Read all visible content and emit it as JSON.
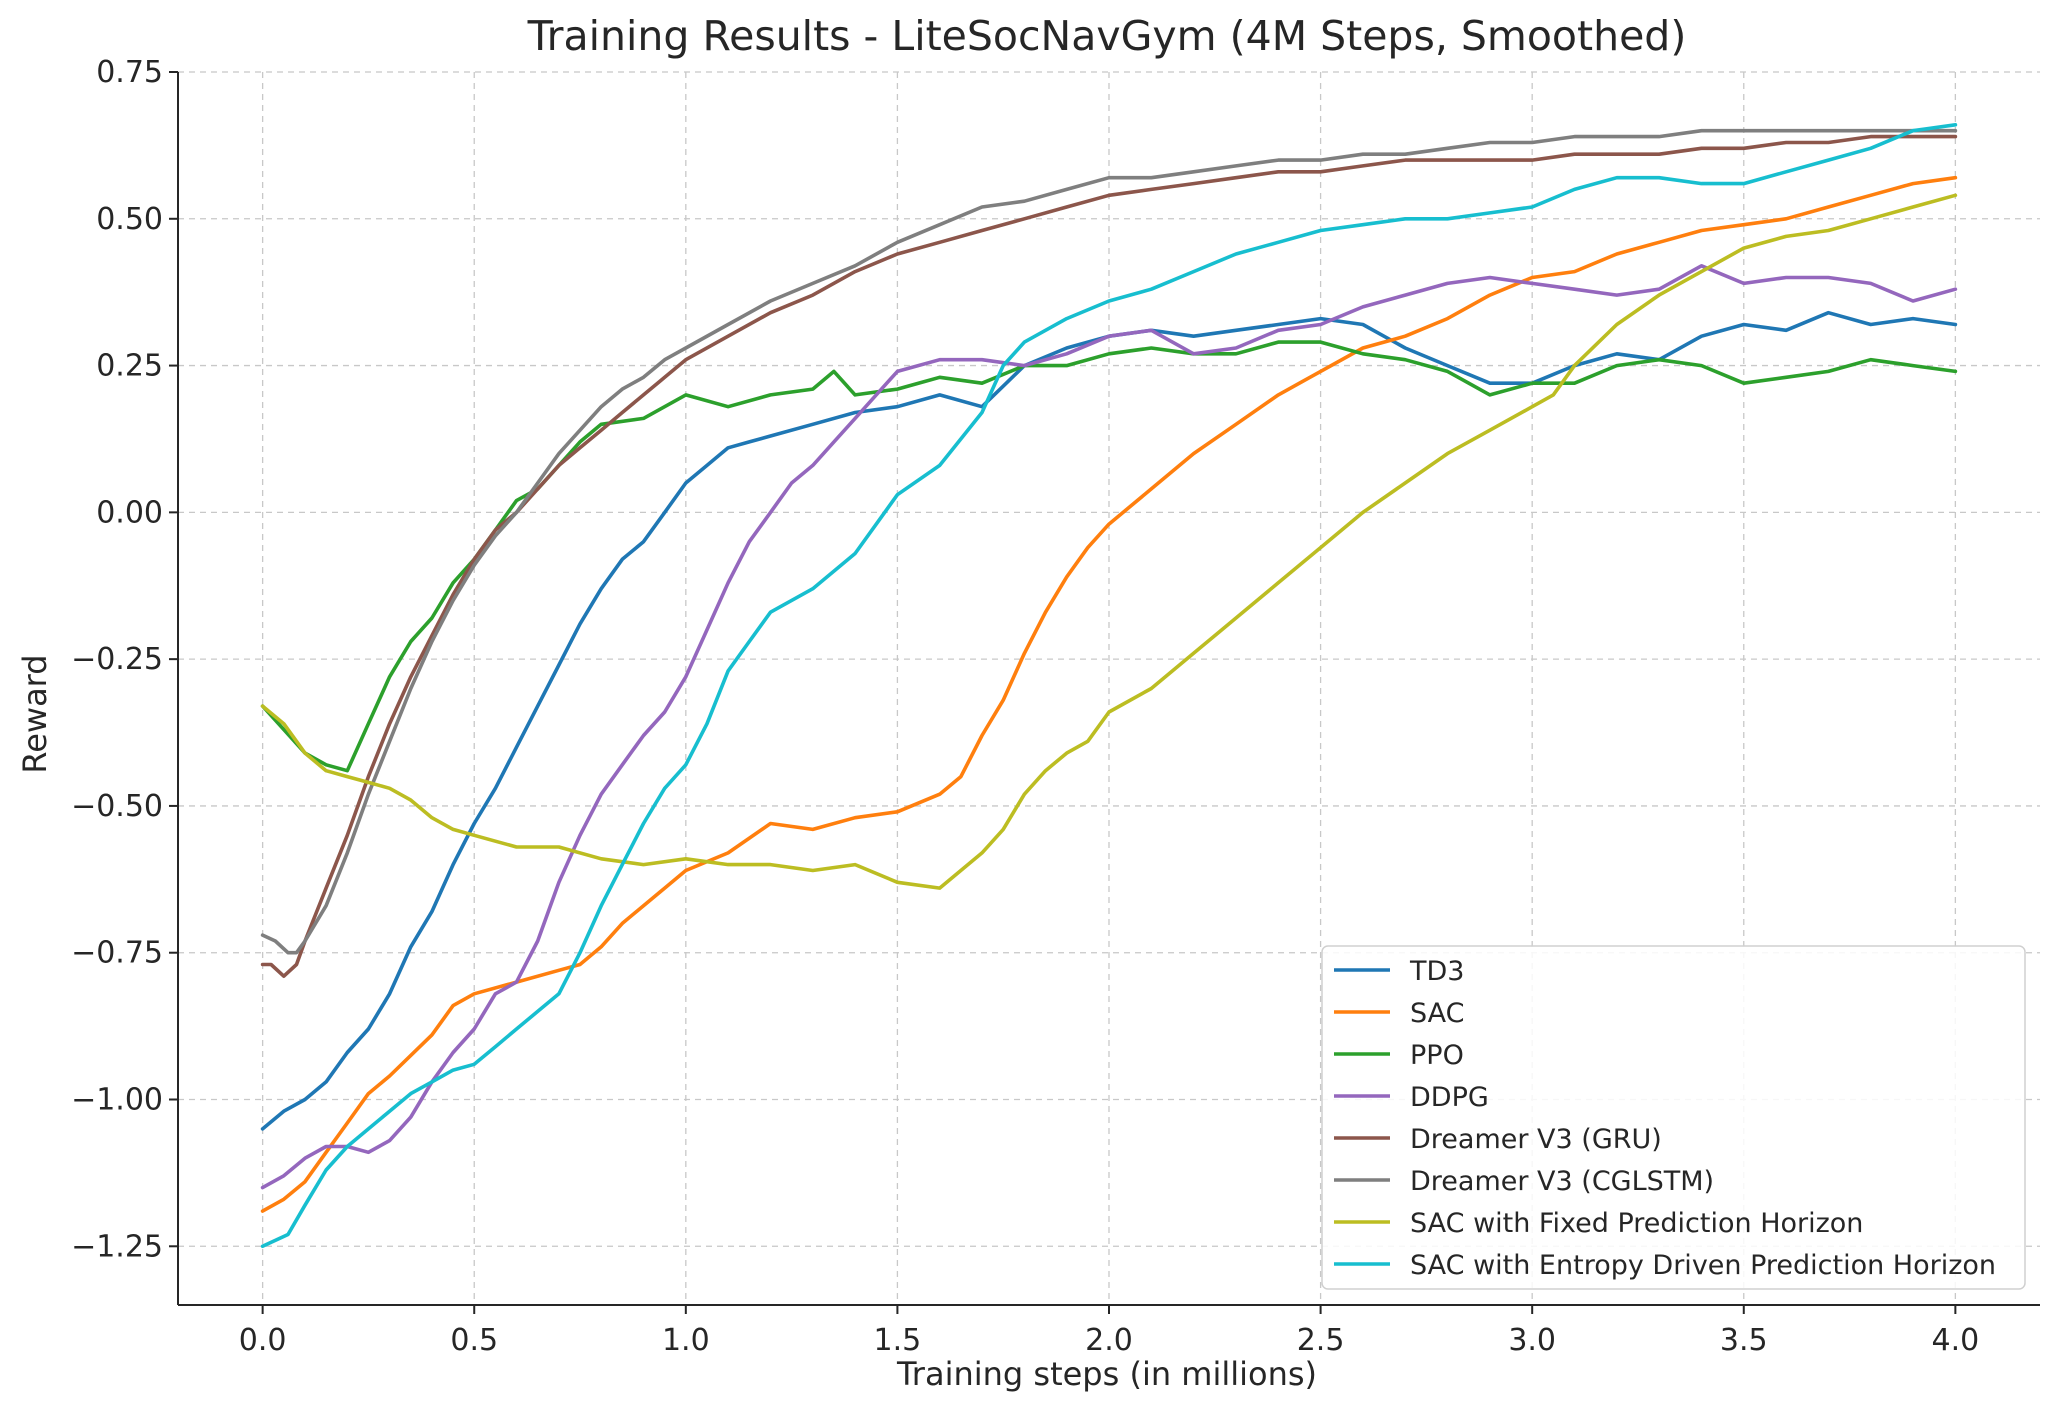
{
  "chart_data": {
    "type": "line",
    "title": "Training Results - LiteSocNavGym (4M Steps, Smoothed)",
    "xlabel": "Training steps (in millions)",
    "ylabel": "Reward",
    "xlim": [
      -0.2,
      4.2
    ],
    "ylim": [
      -1.35,
      0.75
    ],
    "xticks": [
      0.0,
      0.5,
      1.0,
      1.5,
      2.0,
      2.5,
      3.0,
      3.5,
      4.0
    ],
    "xtick_labels": [
      "0.0",
      "0.5",
      "1.0",
      "1.5",
      "2.0",
      "2.5",
      "3.0",
      "3.5",
      "4.0"
    ],
    "yticks": [
      0.75,
      0.5,
      0.25,
      0.0,
      -0.25,
      -0.5,
      -0.75,
      -1.0,
      -1.25
    ],
    "ytick_labels": [
      "0.75",
      "0.50",
      "0.25",
      "0.00",
      "−0.25",
      "−0.50",
      "−0.75",
      "−1.00",
      "−1.25"
    ],
    "grid": true,
    "legend_position": "lower-right",
    "series": [
      {
        "name": "TD3",
        "color": "#1f77b4",
        "x": [
          0,
          0.05,
          0.1,
          0.15,
          0.2,
          0.25,
          0.3,
          0.35,
          0.4,
          0.45,
          0.5,
          0.55,
          0.6,
          0.65,
          0.7,
          0.75,
          0.8,
          0.85,
          0.9,
          0.95,
          1.0,
          1.05,
          1.1,
          1.15,
          1.2,
          1.3,
          1.4,
          1.5,
          1.6,
          1.7,
          1.8,
          1.9,
          2.0,
          2.1,
          2.2,
          2.3,
          2.4,
          2.5,
          2.6,
          2.7,
          2.8,
          2.9,
          3.0,
          3.1,
          3.2,
          3.3,
          3.4,
          3.5,
          3.6,
          3.7,
          3.8,
          3.9,
          4.0
        ],
        "y": [
          -1.05,
          -1.02,
          -1.0,
          -0.97,
          -0.92,
          -0.88,
          -0.82,
          -0.74,
          -0.68,
          -0.6,
          -0.53,
          -0.47,
          -0.4,
          -0.33,
          -0.26,
          -0.19,
          -0.13,
          -0.08,
          -0.05,
          0.0,
          0.05,
          0.08,
          0.11,
          0.12,
          0.13,
          0.15,
          0.17,
          0.18,
          0.2,
          0.18,
          0.25,
          0.28,
          0.3,
          0.31,
          0.3,
          0.31,
          0.32,
          0.33,
          0.32,
          0.28,
          0.25,
          0.22,
          0.22,
          0.25,
          0.27,
          0.26,
          0.3,
          0.32,
          0.31,
          0.34,
          0.32,
          0.33,
          0.32
        ]
      },
      {
        "name": "SAC",
        "color": "#ff7f0e",
        "x": [
          0,
          0.05,
          0.1,
          0.15,
          0.2,
          0.25,
          0.3,
          0.4,
          0.45,
          0.5,
          0.6,
          0.7,
          0.75,
          0.8,
          0.85,
          0.9,
          0.95,
          1.0,
          1.1,
          1.2,
          1.3,
          1.4,
          1.5,
          1.6,
          1.65,
          1.7,
          1.75,
          1.8,
          1.85,
          1.9,
          1.95,
          2.0,
          2.1,
          2.2,
          2.3,
          2.4,
          2.5,
          2.6,
          2.7,
          2.8,
          2.9,
          3.0,
          3.1,
          3.2,
          3.3,
          3.4,
          3.5,
          3.6,
          3.7,
          3.8,
          3.9,
          4.0
        ],
        "y": [
          -1.19,
          -1.17,
          -1.14,
          -1.09,
          -1.04,
          -0.99,
          -0.96,
          -0.89,
          -0.84,
          -0.82,
          -0.8,
          -0.78,
          -0.77,
          -0.74,
          -0.7,
          -0.67,
          -0.64,
          -0.61,
          -0.58,
          -0.53,
          -0.54,
          -0.52,
          -0.51,
          -0.48,
          -0.45,
          -0.38,
          -0.32,
          -0.24,
          -0.17,
          -0.11,
          -0.06,
          -0.02,
          0.04,
          0.1,
          0.15,
          0.2,
          0.24,
          0.28,
          0.3,
          0.33,
          0.37,
          0.4,
          0.41,
          0.44,
          0.46,
          0.48,
          0.49,
          0.5,
          0.52,
          0.54,
          0.56,
          0.57
        ]
      },
      {
        "name": "PPO",
        "color": "#2ca02c",
        "x": [
          0,
          0.05,
          0.1,
          0.15,
          0.2,
          0.25,
          0.3,
          0.35,
          0.4,
          0.45,
          0.5,
          0.55,
          0.6,
          0.65,
          0.7,
          0.75,
          0.8,
          0.9,
          1.0,
          1.1,
          1.2,
          1.3,
          1.35,
          1.4,
          1.5,
          1.6,
          1.7,
          1.8,
          1.9,
          2.0,
          2.1,
          2.2,
          2.3,
          2.4,
          2.5,
          2.6,
          2.7,
          2.8,
          2.9,
          3.0,
          3.1,
          3.2,
          3.3,
          3.4,
          3.5,
          3.6,
          3.7,
          3.8,
          3.9,
          4.0
        ],
        "y": [
          -0.33,
          -0.37,
          -0.41,
          -0.43,
          -0.44,
          -0.36,
          -0.28,
          -0.22,
          -0.18,
          -0.12,
          -0.08,
          -0.03,
          0.02,
          0.04,
          0.08,
          0.12,
          0.15,
          0.16,
          0.2,
          0.18,
          0.2,
          0.21,
          0.24,
          0.2,
          0.21,
          0.23,
          0.22,
          0.25,
          0.25,
          0.27,
          0.28,
          0.27,
          0.27,
          0.29,
          0.29,
          0.27,
          0.26,
          0.24,
          0.2,
          0.22,
          0.22,
          0.25,
          0.26,
          0.25,
          0.22,
          0.23,
          0.24,
          0.26,
          0.25,
          0.24
        ]
      },
      {
        "name": "DDPG",
        "color": "#9467bd",
        "x": [
          0,
          0.05,
          0.1,
          0.15,
          0.2,
          0.25,
          0.3,
          0.35,
          0.4,
          0.45,
          0.5,
          0.55,
          0.6,
          0.65,
          0.7,
          0.75,
          0.8,
          0.85,
          0.9,
          0.95,
          1.0,
          1.05,
          1.1,
          1.15,
          1.2,
          1.25,
          1.3,
          1.35,
          1.4,
          1.45,
          1.5,
          1.6,
          1.7,
          1.8,
          1.9,
          2.0,
          2.1,
          2.2,
          2.3,
          2.4,
          2.5,
          2.6,
          2.7,
          2.8,
          2.9,
          3.0,
          3.1,
          3.2,
          3.3,
          3.4,
          3.5,
          3.6,
          3.7,
          3.8,
          3.9,
          4.0
        ],
        "y": [
          -1.15,
          -1.13,
          -1.1,
          -1.08,
          -1.08,
          -1.09,
          -1.07,
          -1.03,
          -0.97,
          -0.92,
          -0.88,
          -0.82,
          -0.8,
          -0.73,
          -0.63,
          -0.55,
          -0.48,
          -0.43,
          -0.38,
          -0.34,
          -0.28,
          -0.2,
          -0.12,
          -0.05,
          0.0,
          0.05,
          0.08,
          0.12,
          0.16,
          0.2,
          0.24,
          0.26,
          0.26,
          0.25,
          0.27,
          0.3,
          0.31,
          0.27,
          0.28,
          0.31,
          0.32,
          0.35,
          0.37,
          0.39,
          0.4,
          0.39,
          0.38,
          0.37,
          0.38,
          0.42,
          0.39,
          0.4,
          0.4,
          0.39,
          0.36,
          0.38
        ]
      },
      {
        "name": "Dreamer V3 (GRU)",
        "color": "#8c564b",
        "x": [
          0,
          0.02,
          0.05,
          0.08,
          0.1,
          0.15,
          0.2,
          0.25,
          0.3,
          0.35,
          0.4,
          0.45,
          0.5,
          0.55,
          0.6,
          0.65,
          0.7,
          0.75,
          0.8,
          0.85,
          0.9,
          0.95,
          1.0,
          1.1,
          1.2,
          1.3,
          1.4,
          1.5,
          1.6,
          1.7,
          1.8,
          1.9,
          2.0,
          2.1,
          2.2,
          2.3,
          2.4,
          2.5,
          2.6,
          2.7,
          2.8,
          2.9,
          3.0,
          3.1,
          3.2,
          3.3,
          3.4,
          3.5,
          3.6,
          3.7,
          3.8,
          3.9,
          4.0
        ],
        "y": [
          -0.77,
          -0.77,
          -0.79,
          -0.77,
          -0.73,
          -0.64,
          -0.55,
          -0.45,
          -0.36,
          -0.28,
          -0.21,
          -0.14,
          -0.08,
          -0.03,
          0.0,
          0.04,
          0.08,
          0.11,
          0.14,
          0.17,
          0.2,
          0.23,
          0.26,
          0.3,
          0.34,
          0.37,
          0.41,
          0.44,
          0.46,
          0.48,
          0.5,
          0.52,
          0.54,
          0.55,
          0.56,
          0.57,
          0.58,
          0.58,
          0.59,
          0.6,
          0.6,
          0.6,
          0.6,
          0.61,
          0.61,
          0.61,
          0.62,
          0.62,
          0.63,
          0.63,
          0.64,
          0.64,
          0.64
        ]
      },
      {
        "name": "Dreamer V3 (CGLSTM)",
        "color": "#7f7f7f",
        "x": [
          0,
          0.03,
          0.06,
          0.08,
          0.1,
          0.15,
          0.2,
          0.25,
          0.3,
          0.35,
          0.4,
          0.45,
          0.5,
          0.55,
          0.6,
          0.65,
          0.7,
          0.75,
          0.8,
          0.85,
          0.9,
          0.95,
          1.0,
          1.1,
          1.2,
          1.3,
          1.4,
          1.5,
          1.6,
          1.7,
          1.8,
          1.9,
          2.0,
          2.1,
          2.2,
          2.3,
          2.4,
          2.5,
          2.6,
          2.7,
          2.8,
          2.9,
          3.0,
          3.1,
          3.2,
          3.3,
          3.4,
          3.5,
          3.6,
          3.7,
          3.8,
          3.9,
          4.0
        ],
        "y": [
          -0.72,
          -0.73,
          -0.75,
          -0.75,
          -0.73,
          -0.67,
          -0.58,
          -0.48,
          -0.39,
          -0.3,
          -0.22,
          -0.15,
          -0.09,
          -0.04,
          0.0,
          0.05,
          0.1,
          0.14,
          0.18,
          0.21,
          0.23,
          0.26,
          0.28,
          0.32,
          0.36,
          0.39,
          0.42,
          0.46,
          0.49,
          0.52,
          0.53,
          0.55,
          0.57,
          0.57,
          0.58,
          0.59,
          0.6,
          0.6,
          0.61,
          0.61,
          0.62,
          0.63,
          0.63,
          0.64,
          0.64,
          0.64,
          0.65,
          0.65,
          0.65,
          0.65,
          0.65,
          0.65,
          0.65
        ]
      },
      {
        "name": "SAC with Fixed Prediction Horizon",
        "color": "#bcbd22",
        "x": [
          0,
          0.05,
          0.1,
          0.15,
          0.2,
          0.25,
          0.3,
          0.35,
          0.4,
          0.45,
          0.5,
          0.55,
          0.6,
          0.7,
          0.8,
          0.9,
          1.0,
          1.1,
          1.2,
          1.3,
          1.4,
          1.5,
          1.6,
          1.7,
          1.75,
          1.8,
          1.85,
          1.9,
          1.95,
          2.0,
          2.1,
          2.2,
          2.3,
          2.4,
          2.5,
          2.6,
          2.7,
          2.8,
          2.9,
          3.0,
          3.05,
          3.1,
          3.2,
          3.3,
          3.4,
          3.5,
          3.6,
          3.7,
          3.8,
          3.9,
          4.0
        ],
        "y": [
          -0.33,
          -0.36,
          -0.41,
          -0.44,
          -0.45,
          -0.46,
          -0.47,
          -0.49,
          -0.52,
          -0.54,
          -0.55,
          -0.56,
          -0.57,
          -0.57,
          -0.59,
          -0.6,
          -0.59,
          -0.6,
          -0.6,
          -0.61,
          -0.6,
          -0.63,
          -0.64,
          -0.58,
          -0.54,
          -0.48,
          -0.44,
          -0.41,
          -0.39,
          -0.34,
          -0.3,
          -0.24,
          -0.18,
          -0.12,
          -0.06,
          0.0,
          0.05,
          0.1,
          0.14,
          0.18,
          0.2,
          0.25,
          0.32,
          0.37,
          0.41,
          0.45,
          0.47,
          0.48,
          0.5,
          0.52,
          0.54
        ]
      },
      {
        "name": "SAC with Entropy Driven Prediction Horizon",
        "color": "#17becf",
        "x": [
          0,
          0.03,
          0.06,
          0.1,
          0.15,
          0.2,
          0.25,
          0.3,
          0.35,
          0.4,
          0.45,
          0.5,
          0.55,
          0.6,
          0.65,
          0.7,
          0.75,
          0.8,
          0.85,
          0.9,
          0.95,
          1.0,
          1.05,
          1.1,
          1.15,
          1.2,
          1.3,
          1.4,
          1.5,
          1.6,
          1.7,
          1.75,
          1.8,
          1.9,
          2.0,
          2.1,
          2.2,
          2.3,
          2.4,
          2.5,
          2.6,
          2.7,
          2.8,
          2.9,
          3.0,
          3.1,
          3.2,
          3.3,
          3.4,
          3.5,
          3.6,
          3.7,
          3.8,
          3.9,
          4.0
        ],
        "y": [
          -1.25,
          -1.24,
          -1.23,
          -1.18,
          -1.12,
          -1.08,
          -1.05,
          -1.02,
          -0.99,
          -0.97,
          -0.95,
          -0.94,
          -0.91,
          -0.88,
          -0.85,
          -0.82,
          -0.75,
          -0.67,
          -0.6,
          -0.53,
          -0.47,
          -0.43,
          -0.36,
          -0.27,
          -0.22,
          -0.17,
          -0.13,
          -0.07,
          0.03,
          0.08,
          0.17,
          0.25,
          0.29,
          0.33,
          0.36,
          0.38,
          0.41,
          0.44,
          0.46,
          0.48,
          0.49,
          0.5,
          0.5,
          0.51,
          0.52,
          0.55,
          0.57,
          0.57,
          0.56,
          0.56,
          0.58,
          0.6,
          0.62,
          0.65,
          0.66
        ]
      }
    ]
  }
}
